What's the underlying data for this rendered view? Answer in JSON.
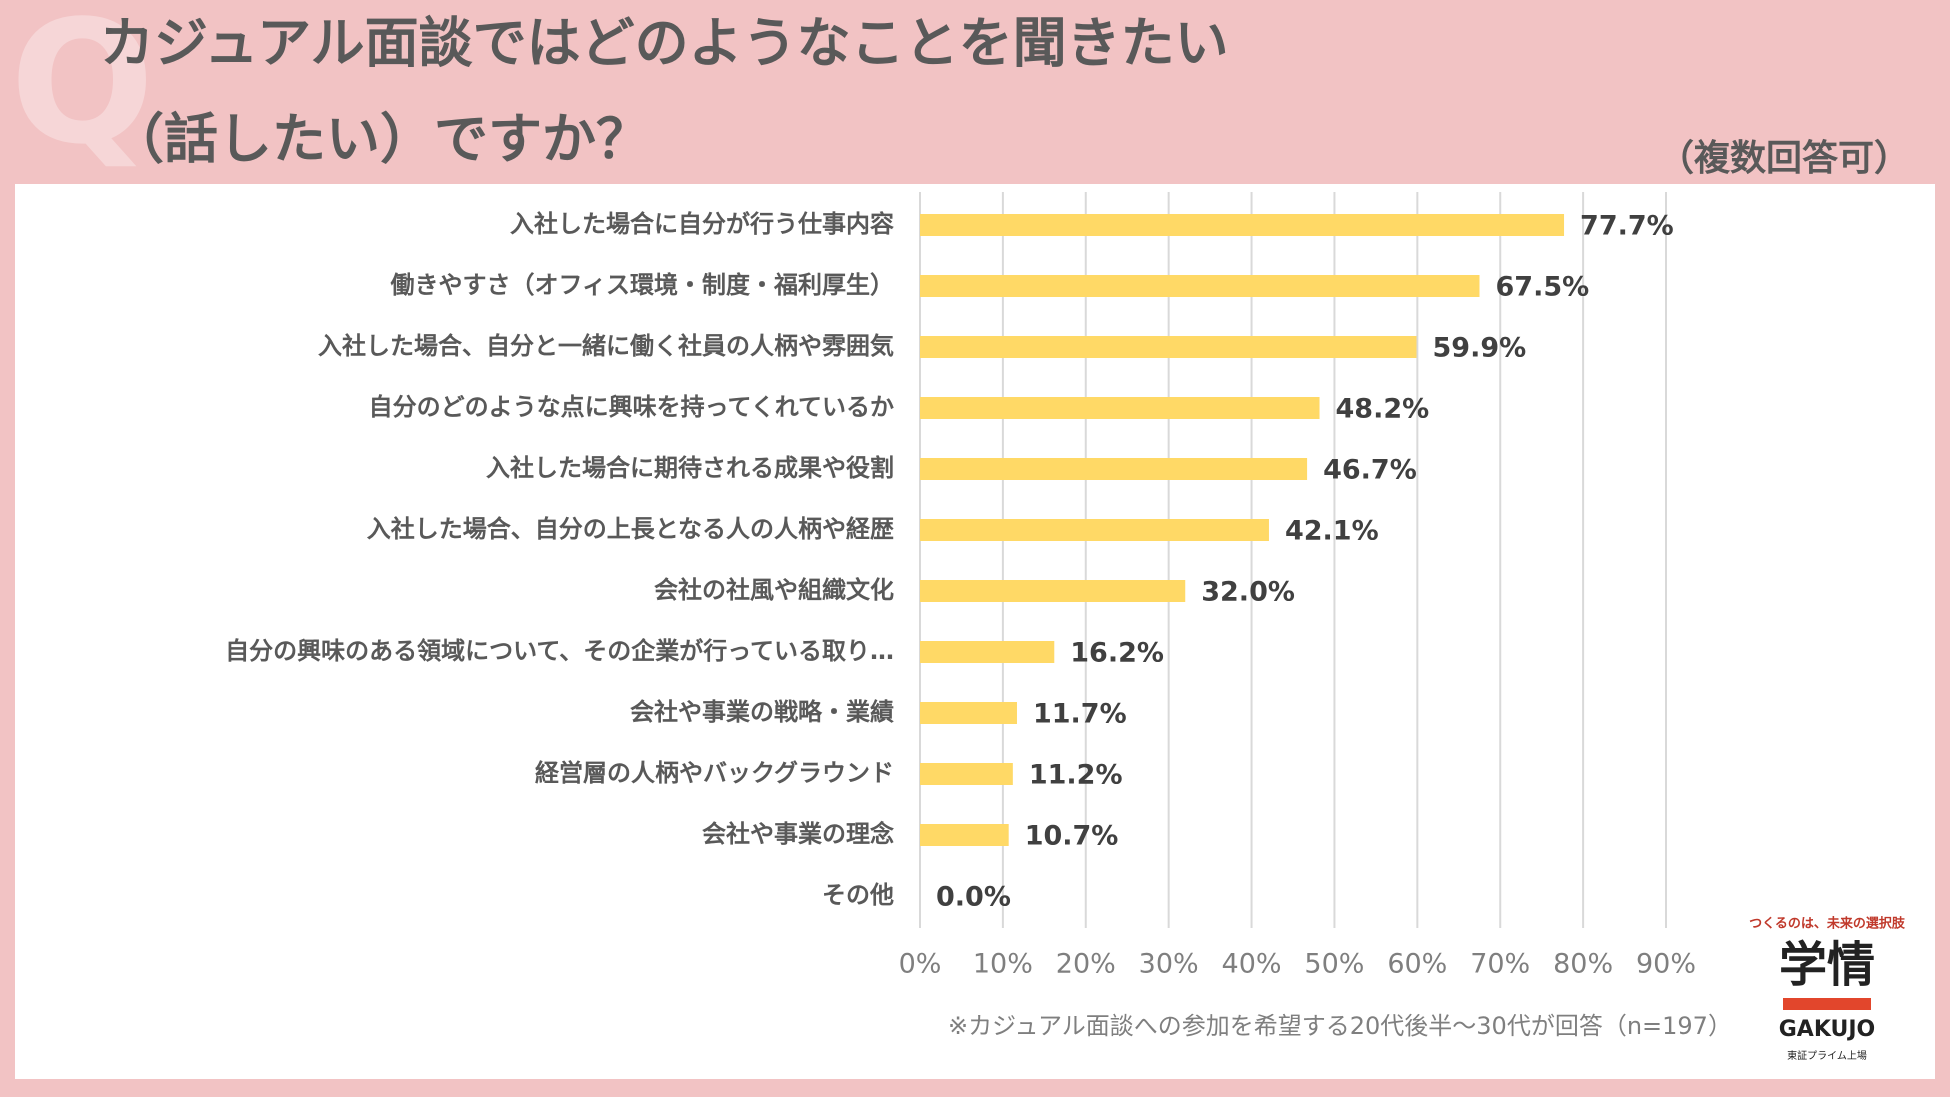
{
  "chart_data": {
    "type": "bar",
    "orientation": "horizontal",
    "title": [
      "カジュアル面談ではどのようなことを聞きたい",
      "（話したい）ですか？"
    ],
    "subtitle": "（複数回答可）",
    "categories": [
      "入社した場合に自分が行う仕事内容",
      "働きやすさ（オフィス環境・制度・福利厚生）",
      "入社した場合、自分と一緒に働く社員の人柄や雰囲気",
      "自分のどのような点に興味を持ってくれているか",
      "入社した場合に期待される成果や役割",
      "入社した場合、自分の上長となる人の人柄や経歴",
      "会社の社風や組織文化",
      "自分の興味のある領域について、その企業が行っている取り…",
      "会社や事業の戦略・業績",
      "経営層の人柄やバックグラウンド",
      "会社や事業の理念",
      "その他"
    ],
    "values": [
      77.7,
      67.5,
      59.9,
      48.2,
      46.7,
      42.1,
      32.0,
      16.2,
      11.7,
      11.2,
      10.7,
      0.0
    ],
    "value_labels": [
      "77.7%",
      "67.5%",
      "59.9%",
      "48.2%",
      "46.7%",
      "42.1%",
      "32.0%",
      "16.2%",
      "11.7%",
      "11.2%",
      "10.7%",
      "0.0%"
    ],
    "color": "#ffd966",
    "xlim": [
      0,
      90
    ],
    "xticks": [
      {
        "value": 0,
        "label": "0%"
      },
      {
        "value": 10,
        "label": "10%"
      },
      {
        "value": 20,
        "label": "20%"
      },
      {
        "value": 30,
        "label": "30%"
      },
      {
        "value": 40,
        "label": "40%"
      },
      {
        "value": 50,
        "label": "50%"
      },
      {
        "value": 60,
        "label": "60%"
      },
      {
        "value": 70,
        "label": "70%"
      },
      {
        "value": 80,
        "label": "80%"
      },
      {
        "value": 90,
        "label": "90%"
      }
    ],
    "grid": true,
    "note": "※カジュアル面談への参加を希望する20代後半～30代が回答（n=197）"
  },
  "logo": {
    "tagline": "つくるのは、未来の選択肢",
    "name": "学情",
    "romaji": "GAKUJO",
    "listing": "東証プライム上場"
  }
}
